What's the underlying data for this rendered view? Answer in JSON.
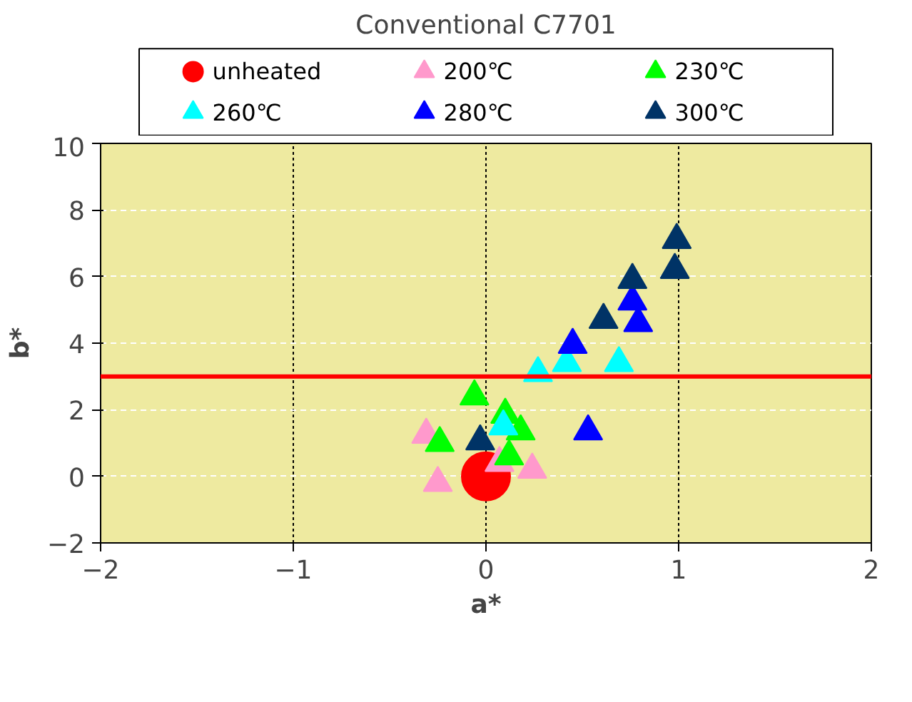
{
  "chart_data": {
    "type": "scatter",
    "title": "Conventional C7701",
    "xlabel": "a*",
    "ylabel": "b*",
    "marker": "triangle",
    "legend": "top",
    "grid": true,
    "xlim": [
      -2,
      2
    ],
    "xticks": [
      -2,
      -1,
      0,
      1,
      2
    ],
    "ylim": [
      -2,
      10
    ],
    "yticks": [
      -2,
      0,
      2,
      4,
      6,
      8,
      10
    ],
    "series": [
      {
        "name": "unheated",
        "color": "#ff0000",
        "marker": "circle",
        "x": [
          0
        ],
        "values": [
          0
        ]
      },
      {
        "name": "200℃",
        "color": "#ff99cc",
        "x": [
          -0.31,
          0.24,
          0.07,
          -0.25
        ],
        "values": [
          1.25,
          0.2,
          0.4,
          -0.2
        ]
      },
      {
        "name": "230℃",
        "color": "#00ff00",
        "x": [
          -0.06,
          -0.24,
          0.1,
          0.18,
          0.12
        ],
        "values": [
          2.4,
          1.0,
          1.85,
          1.35,
          0.6
        ]
      },
      {
        "name": "260℃",
        "color": "#00ffff",
        "x": [
          0.27,
          0.42,
          0.69,
          0.09
        ],
        "values": [
          3.1,
          3.4,
          3.4,
          1.5
        ]
      },
      {
        "name": "280℃",
        "color": "#0000ff",
        "x": [
          0.45,
          0.53,
          0.76,
          0.79
        ],
        "values": [
          3.95,
          1.35,
          5.25,
          4.6
        ]
      },
      {
        "name": "300℃",
        "color": "#003366",
        "x": [
          -0.03,
          0.61,
          0.76,
          0.98,
          0.99
        ],
        "values": [
          1.05,
          4.7,
          5.9,
          6.2,
          7.1
        ]
      }
    ],
    "ref_lines": [
      {
        "axis": "y",
        "value": 3,
        "color": "#ff0000"
      }
    ]
  }
}
